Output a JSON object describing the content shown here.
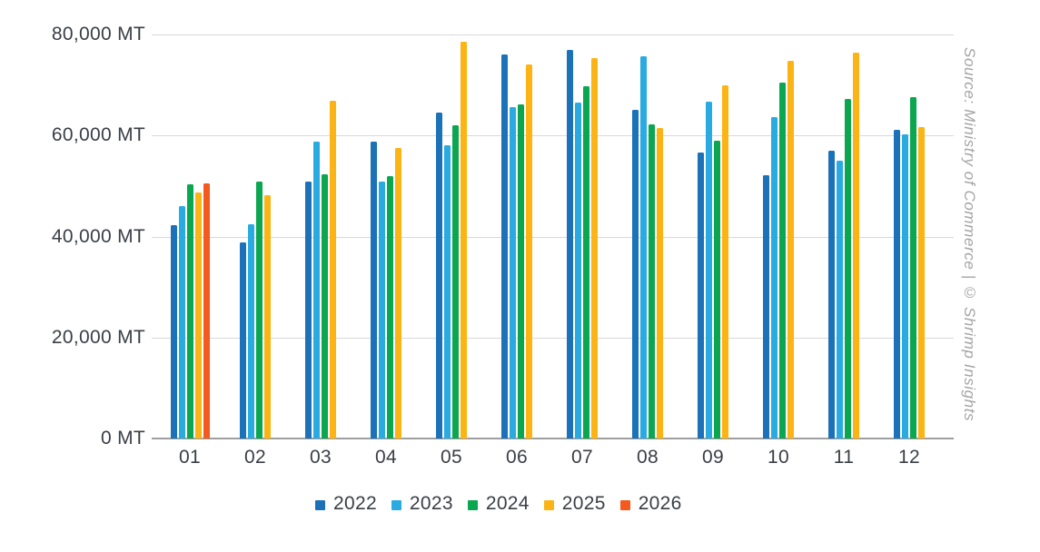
{
  "source_note": "Source: Ministry of Commerce | © Shrimp Insights",
  "chart_data": {
    "type": "bar",
    "title": "",
    "unit": "MT",
    "categories": [
      "01",
      "02",
      "03",
      "04",
      "05",
      "06",
      "07",
      "08",
      "09",
      "10",
      "11",
      "12"
    ],
    "series": [
      {
        "name": "2022",
        "color": "#1c72b8",
        "values": [
          42200,
          38900,
          50800,
          58800,
          64500,
          76000,
          76900,
          65100,
          56700,
          52200,
          57000,
          61200
        ]
      },
      {
        "name": "2023",
        "color": "#29abe2",
        "values": [
          46100,
          42500,
          58700,
          50900,
          58100,
          65700,
          66600,
          75600,
          66700,
          63600,
          55100,
          60300
        ]
      },
      {
        "name": "2024",
        "color": "#0ba650",
        "values": [
          50400,
          50800,
          52400,
          52000,
          62000,
          66100,
          69800,
          62200,
          59000,
          70400,
          67300,
          67600
        ]
      },
      {
        "name": "2025",
        "color": "#fcb415",
        "values": [
          48800,
          48100,
          66900,
          57600,
          78600,
          74100,
          75300,
          61500,
          69900,
          74800,
          76400,
          61700
        ]
      },
      {
        "name": "2026",
        "color": "#f4591d",
        "values": [
          50600,
          null,
          null,
          null,
          null,
          null,
          null,
          null,
          null,
          null,
          null,
          null
        ]
      }
    ],
    "yticks": [
      {
        "value": 0,
        "label": "0 MT"
      },
      {
        "value": 20000,
        "label": "20,000 MT"
      },
      {
        "value": 40000,
        "label": "40,000 MT"
      },
      {
        "value": 60000,
        "label": "60,000 MT"
      },
      {
        "value": 80000,
        "label": "80,000 MT"
      }
    ],
    "ylim": [
      0,
      80000
    ],
    "xlabel": "",
    "ylabel": "",
    "grid": true,
    "legend_position": "bottom",
    "grid_color": "#d9d9d9",
    "axis_color": "#9e9e9e",
    "text_color": "#3a3e45",
    "source_text_color": "#a5a5a5"
  }
}
